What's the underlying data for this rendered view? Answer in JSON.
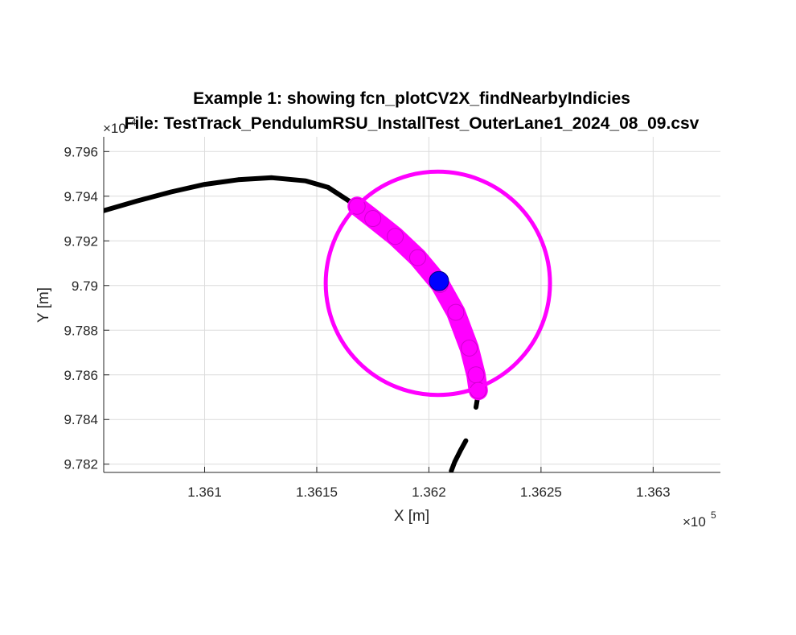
{
  "chart_data": {
    "type": "scatter",
    "title": "Example 1: showing fcn_plotCV2X_findNearbyIndicies",
    "subtitle": "File: TestTrack_PendulumRSU_InstallTest_OuterLane1_2024_08_09.csv",
    "xlabel": "X [m]",
    "ylabel": "Y [m]",
    "x_exponent_label": "×10",
    "x_exponent_power": "5",
    "y_exponent_label": "×10",
    "y_exponent_power": "4",
    "xlim": [
      136055,
      136330
    ],
    "ylim": [
      97816.3,
      97966.6
    ],
    "x_ticks": [
      136100,
      136150,
      136200,
      136250,
      136300
    ],
    "x_tick_labels": [
      "1.361",
      "1.3615",
      "1.362",
      "1.3625",
      "1.363"
    ],
    "y_ticks": [
      97820,
      97840,
      97860,
      97880,
      97900,
      97920,
      97940,
      97960
    ],
    "y_tick_labels": [
      "9.782",
      "9.784",
      "9.786",
      "9.788",
      "9.79",
      "9.792",
      "9.794",
      "9.796"
    ],
    "grid": true,
    "colors": {
      "track": "#000000",
      "nearby": "#ff00ff",
      "center": "#0000ff",
      "grid": "#dcdcdc"
    },
    "series": [
      {
        "role": "track",
        "x": [
          136055,
          136070,
          136085,
          136100,
          136115,
          136130,
          136145,
          136155,
          136168,
          136175,
          136185,
          136195,
          136205,
          136212,
          136218,
          136221,
          136222
        ],
        "y": [
          97933.5,
          97937.9,
          97941.9,
          97945.3,
          97947.4,
          97948.3,
          97946.9,
          97944.0,
          97935.5,
          97930.0,
          97922.0,
          97912.5,
          97900.5,
          97888.0,
          97872.0,
          97860.0,
          97853.0
        ]
      },
      {
        "role": "track-segment",
        "x": [
          136221.5,
          136221.0
        ],
        "y": [
          97848.5,
          97845.5
        ]
      },
      {
        "role": "track-segment",
        "x": [
          136216.5,
          136214.0,
          136211.5,
          136210.0
        ],
        "y": [
          97830.5,
          97826.0,
          97821.0,
          97817.0
        ]
      },
      {
        "role": "nearby-points",
        "x": [
          136168,
          136175,
          136185,
          136195,
          136205,
          136212,
          136218,
          136221,
          136222
        ],
        "y": [
          97935.5,
          97930.0,
          97922.0,
          97912.5,
          97900.5,
          97888.0,
          97872.0,
          97860.0,
          97853.0
        ]
      },
      {
        "role": "search-radius",
        "center": [
          136204,
          97901
        ],
        "radius": 50
      },
      {
        "role": "query-point",
        "x": [
          136204.5
        ],
        "y": [
          97902
        ]
      }
    ]
  }
}
